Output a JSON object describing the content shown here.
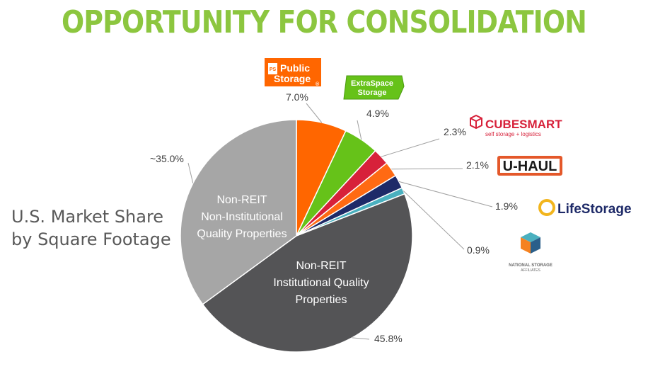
{
  "page": {
    "title": "OPPORTUNITY FOR CONSOLIDATION",
    "side_caption": "U.S. Market Share\nby Square Footage"
  },
  "chart_data": {
    "type": "pie",
    "slices": [
      {
        "label": "Public Storage",
        "value": 7.0,
        "display": "7.0%",
        "color": "#ff6600"
      },
      {
        "label": "Extra Space Storage",
        "value": 4.9,
        "display": "4.9%",
        "color": "#66c219"
      },
      {
        "label": "CubeSmart",
        "value": 2.3,
        "display": "2.3%",
        "color": "#d7213a"
      },
      {
        "label": "U-Haul",
        "value": 2.1,
        "display": "2.1%",
        "color": "#ff6a13"
      },
      {
        "label": "Life Storage",
        "value": 1.9,
        "display": "1.9%",
        "color": "#1e2a68"
      },
      {
        "label": "National Storage Affiliates",
        "value": 0.9,
        "display": "0.9%",
        "color": "#4ab0bf"
      },
      {
        "label": "Non-REIT Institutional Quality Properties",
        "value": 45.8,
        "display": "45.8%",
        "color": "#545456"
      },
      {
        "label": "Non-REIT Non-Institutional Quality Properties",
        "value": 35.0,
        "display": "~35.0%",
        "color": "#a6a6a6"
      }
    ],
    "inner_labels": {
      "institutional": [
        "Non-REIT",
        "Institutional Quality",
        "Properties"
      ],
      "non_institutional": [
        "Non-REIT",
        "Non-Institutional",
        "Quality Properties"
      ]
    }
  },
  "logos": {
    "public_storage": {
      "line1": "Public",
      "line2": "Storage",
      "mark": "PS",
      "reg": "®",
      "color": "#ff6600"
    },
    "extra_space": {
      "line1": "ExtraSpace",
      "line2": "Storage",
      "color": "#66c219"
    },
    "cubesmart": {
      "name": "CUBESMART",
      "tagline": "self storage + logistics",
      "color": "#d7213a"
    },
    "uhaul": {
      "name": "U-HAUL",
      "color": "#e4582a"
    },
    "life_storage": {
      "name": "LifeStorage",
      "color": "#1e2a68",
      "accent": "#f2b51d"
    },
    "nsa": {
      "line1": "NATIONAL STORAGE",
      "line2": "AFFILIATES",
      "color": "#666666"
    }
  }
}
